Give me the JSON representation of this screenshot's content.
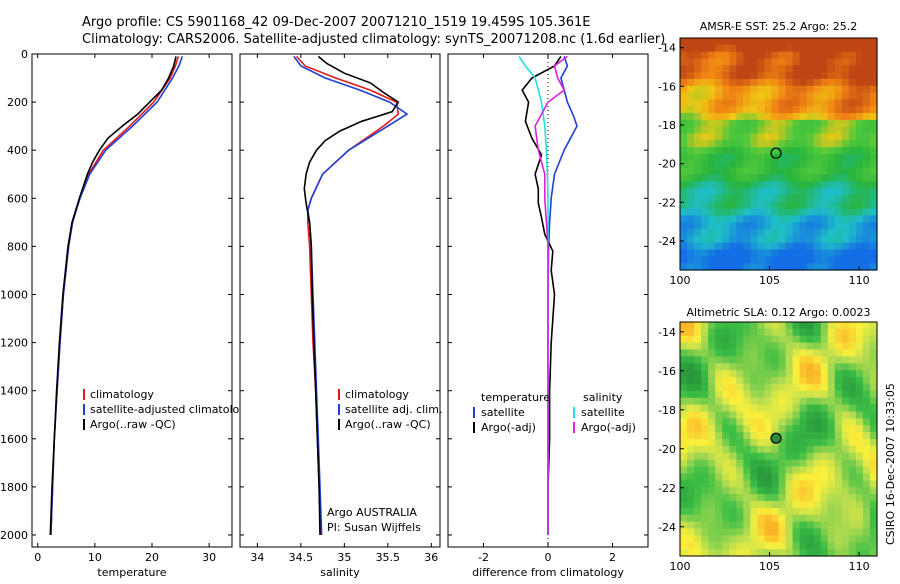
{
  "header": {
    "line1": "Argo profile: CS 5901168_42 09-Dec-2007 20071210_1519 19.459S 105.361E",
    "line2": "Climatology: CARS2006. Satellite-adjusted climatology: synTS_20071208.nc (1.6d earlier)"
  },
  "side_note": "CSIRO 16-Dec-2007 10:33:05",
  "colors": {
    "climatology": "#e41a1c",
    "satellite": "#1f3fd6",
    "argo": "#000000",
    "sal_satellite": "#22e0e0",
    "sal_argo": "#e020e0"
  },
  "chart_data": [
    {
      "type": "line",
      "id": "temperature",
      "xlabel": "temperature",
      "xlim": [
        -1,
        34
      ],
      "xticks": [
        0,
        10,
        20,
        30
      ],
      "ylim": [
        0,
        2050
      ],
      "yticks": [
        0,
        200,
        400,
        600,
        800,
        1000,
        1200,
        1400,
        1600,
        1800,
        2000
      ],
      "reversed_y": true,
      "legend": [
        "climatology",
        "satellite-adjusted climatology",
        "Argo(..raw -QC)"
      ],
      "legend_position": "lower-left",
      "series": [
        {
          "name": "climatology",
          "color": "climatology",
          "pressure": [
            10,
            50,
            100,
            200,
            300,
            400,
            500,
            600,
            700,
            800,
            1000,
            1200,
            1400,
            1600,
            1800,
            2000
          ],
          "values": [
            24.6,
            24.1,
            23.2,
            20.3,
            16.1,
            11.5,
            8.9,
            7.3,
            6.1,
            5.4,
            4.5,
            3.9,
            3.4,
            2.9,
            2.6,
            2.3
          ]
        },
        {
          "name": "satellite-adjusted climatology",
          "color": "satellite",
          "pressure": [
            10,
            50,
            100,
            200,
            300,
            400,
            500,
            600,
            700,
            800,
            1000,
            1200,
            1400,
            1600,
            1800,
            2000
          ],
          "values": [
            25.3,
            24.7,
            23.6,
            20.9,
            16.6,
            11.9,
            9.1,
            7.4,
            6.1,
            5.4,
            4.5,
            3.9,
            3.4,
            2.9,
            2.6,
            2.3
          ]
        },
        {
          "name": "Argo(..raw -QC)",
          "color": "argo",
          "pressure": [
            10,
            50,
            100,
            150,
            200,
            250,
            300,
            350,
            400,
            450,
            500,
            600,
            700,
            800,
            1000,
            1200,
            1400,
            1600,
            1800,
            2000
          ],
          "values": [
            24.2,
            23.8,
            22.9,
            21.7,
            19.6,
            17.5,
            14.8,
            12.3,
            10.8,
            9.6,
            8.7,
            7.3,
            6.0,
            5.3,
            4.4,
            3.8,
            3.3,
            2.9,
            2.5,
            2.2
          ]
        }
      ]
    },
    {
      "type": "line",
      "id": "salinity",
      "xlabel": "salinity",
      "xlim": [
        33.8,
        36.1
      ],
      "xticks": [
        34,
        34.5,
        35,
        35.5,
        36
      ],
      "ylim": [
        0,
        2050
      ],
      "reversed_y": true,
      "legend": [
        "climatology",
        "satellite adj. clim.",
        "Argo(..raw -QC)"
      ],
      "legend_position": "lower-left",
      "annotation": [
        "Argo AUSTRALIA",
        "PI: Susan Wijffels"
      ],
      "series": [
        {
          "name": "climatology",
          "color": "climatology",
          "pressure": [
            10,
            50,
            100,
            150,
            200,
            250,
            300,
            400,
            500,
            600,
            650,
            700,
            800,
            1000,
            1200,
            1400,
            1600,
            1800,
            2000
          ],
          "values": [
            34.45,
            34.55,
            34.9,
            35.3,
            35.6,
            35.62,
            35.45,
            35.05,
            34.75,
            34.62,
            34.58,
            34.58,
            34.6,
            34.62,
            34.64,
            34.67,
            34.69,
            34.71,
            34.73
          ]
        },
        {
          "name": "satellite adj. clim.",
          "color": "satellite",
          "pressure": [
            10,
            50,
            100,
            150,
            200,
            250,
            300,
            400,
            500,
            600,
            650,
            700,
            800,
            1000,
            1200,
            1400,
            1600,
            1800,
            2000
          ],
          "values": [
            34.42,
            34.5,
            34.78,
            35.18,
            35.52,
            35.72,
            35.5,
            35.05,
            34.75,
            34.62,
            34.58,
            34.6,
            34.62,
            34.64,
            34.66,
            34.68,
            34.7,
            34.72,
            34.74
          ]
        },
        {
          "name": "Argo(..raw -QC)",
          "color": "argo",
          "pressure": [
            10,
            40,
            80,
            120,
            160,
            200,
            240,
            280,
            320,
            360,
            400,
            450,
            500,
            560,
            620,
            660,
            700,
            800,
            1000,
            1200,
            1400,
            1600,
            1800,
            2000
          ],
          "values": [
            34.7,
            34.8,
            35.0,
            35.3,
            35.45,
            35.62,
            35.55,
            35.2,
            34.95,
            34.78,
            34.68,
            34.6,
            34.56,
            34.54,
            34.56,
            34.58,
            34.6,
            34.62,
            34.63,
            34.65,
            34.67,
            34.69,
            34.71,
            34.72
          ]
        }
      ]
    },
    {
      "type": "line",
      "id": "difference",
      "xlabel": "difference from climatology",
      "xlim": [
        -3.1,
        3.1
      ],
      "xticks": [
        -2,
        0,
        2
      ],
      "ylim": [
        0,
        2050
      ],
      "reversed_y": true,
      "legend_left_title": "temperature",
      "legend_right_title": "salinity",
      "legend_left": [
        "satellite",
        "Argo(-adj)"
      ],
      "legend_right": [
        "satellite",
        "Argo(-adj)"
      ],
      "series": [
        {
          "name": "temperature satellite",
          "color": "satellite",
          "pressure": [
            10,
            50,
            100,
            200,
            260,
            300,
            400,
            500,
            600,
            700,
            800,
            1000,
            1200,
            1400,
            1600,
            1800,
            2000
          ],
          "values": [
            0.5,
            0.6,
            0.4,
            0.6,
            0.8,
            0.9,
            0.5,
            0.2,
            0.1,
            0.05,
            0.02,
            0.0,
            0.0,
            0.0,
            0.0,
            0.0,
            0.0
          ]
        },
        {
          "name": "temperature Argo(-adj)",
          "color": "argo",
          "pressure": [
            10,
            50,
            100,
            150,
            200,
            280,
            350,
            420,
            500,
            560,
            620,
            680,
            750,
            820,
            900,
            1000,
            1200,
            1400,
            1600,
            1800,
            2000
          ],
          "values": [
            0.4,
            0.2,
            -0.5,
            -0.8,
            -0.6,
            -0.7,
            -0.5,
            -0.2,
            -0.4,
            -0.3,
            -0.3,
            -0.2,
            -0.1,
            0.15,
            0.1,
            0.2,
            0.1,
            0.05,
            0.05,
            0.0,
            0.0
          ]
        },
        {
          "name": "salinity satellite",
          "color": "sal_satellite",
          "pressure": [
            10,
            50,
            100,
            200,
            300,
            400,
            500,
            600,
            700,
            800,
            1000,
            1200,
            1400,
            1600,
            1800,
            2000
          ],
          "values": [
            -0.9,
            -0.7,
            -0.4,
            -0.2,
            -0.1,
            -0.05,
            -0.02,
            0.0,
            0.0,
            0.0,
            0.0,
            0.0,
            0.0,
            0.0,
            0.0,
            0.0
          ]
        },
        {
          "name": "salinity Argo(-adj)",
          "color": "sal_argo",
          "pressure": [
            10,
            50,
            100,
            150,
            200,
            250,
            300,
            400,
            500,
            600,
            700,
            800,
            1000,
            1200,
            1400,
            1600,
            1800,
            2000
          ],
          "values": [
            0.6,
            0.2,
            0.3,
            0.5,
            0.0,
            -0.2,
            -0.4,
            -0.3,
            -0.1,
            -0.1,
            -0.05,
            0.0,
            0.0,
            0.0,
            0.0,
            0.0,
            0.0,
            0.0
          ]
        }
      ]
    },
    {
      "type": "heatmap",
      "id": "sst_map",
      "title": "AMSR-E SST: 25.2 Argo: 25.2",
      "xticks": [
        100,
        105,
        110
      ],
      "yticks": [
        -14,
        -16,
        -18,
        -20,
        -22,
        -24
      ],
      "xlim": [
        100,
        111
      ],
      "ylim": [
        -25.5,
        -13.5
      ],
      "marker": {
        "lon": 105.361,
        "lat": -19.459,
        "filled": false
      }
    },
    {
      "type": "heatmap",
      "id": "sla_map",
      "title": "Altimetric SLA: 0.12 Argo: 0.0023",
      "xticks": [
        100,
        105,
        110
      ],
      "yticks": [
        -14,
        -16,
        -18,
        -20,
        -22,
        -24
      ],
      "xlim": [
        100,
        111
      ],
      "ylim": [
        -25.5,
        -13.5
      ],
      "marker": {
        "lon": 105.361,
        "lat": -19.459,
        "filled": true
      }
    }
  ]
}
